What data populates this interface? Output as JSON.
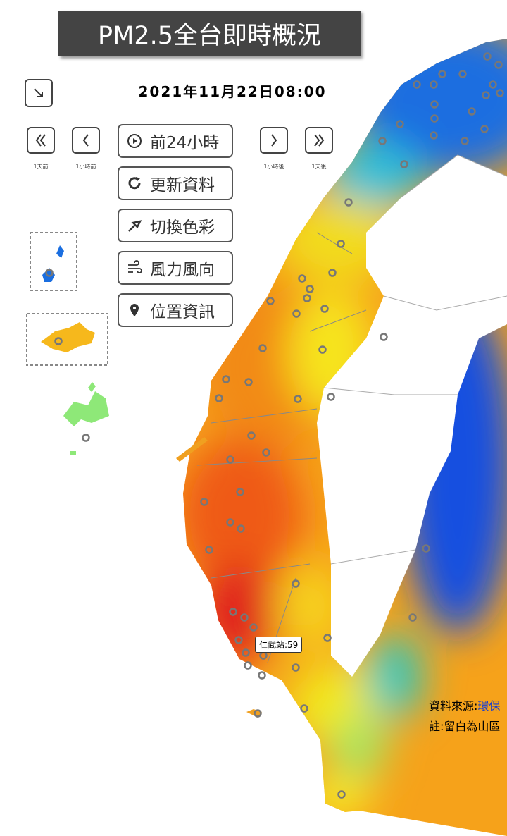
{
  "header": {
    "title": "PM2.5全台即時概況",
    "datetime": "2021年11月22日08:00"
  },
  "nav": {
    "labels": [
      "1天前",
      "1小時前",
      "1小時後",
      "1天後"
    ]
  },
  "buttons": [
    "前24小時",
    "更新資料",
    "切換色彩",
    "風力風向",
    "位置資訊"
  ],
  "tooltip": "仁武站:59",
  "footer": {
    "source_label": "資料來源:",
    "source_link": "環保",
    "note": "註:留白為山區"
  }
}
